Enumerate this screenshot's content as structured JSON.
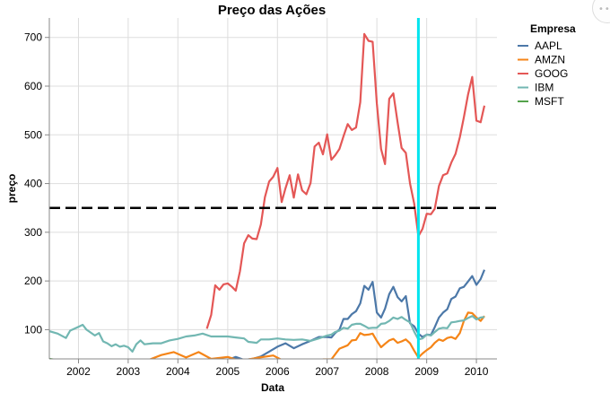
{
  "chart_data": {
    "type": "line",
    "title": "Preço das Ações",
    "xlabel": "Data",
    "ylabel": "preço",
    "ylim": [
      40,
      740
    ],
    "xlim": [
      "2001-06-01",
      "2010-06-01"
    ],
    "x_ticks": [
      "2002",
      "2003",
      "2004",
      "2005",
      "2006",
      "2007",
      "2008",
      "2009",
      "2010"
    ],
    "y_ticks": [
      100,
      200,
      300,
      400,
      500,
      600,
      700
    ],
    "grid": true,
    "legend": {
      "title": "Empresa",
      "position": "right"
    },
    "rules": [
      {
        "orientation": "horizontal",
        "y": 350,
        "color": "#000000",
        "style": "dashed"
      },
      {
        "orientation": "vertical",
        "x": "2008-11-01",
        "color": "#00e5ee",
        "style": "solid"
      }
    ],
    "series": [
      {
        "name": "AAPL",
        "color": "#4c78a8",
        "points": [
          [
            "2001-06-01",
            25
          ],
          [
            "2002-01-01",
            22
          ],
          [
            "2003-01-01",
            15
          ],
          [
            "2004-01-01",
            22
          ],
          [
            "2004-10-01",
            35
          ],
          [
            "2005-01-01",
            38
          ],
          [
            "2005-03-01",
            44
          ],
          [
            "2005-05-01",
            38
          ],
          [
            "2005-07-01",
            40
          ],
          [
            "2005-09-01",
            45
          ],
          [
            "2005-11-01",
            55
          ],
          [
            "2006-01-01",
            65
          ],
          [
            "2006-03-01",
            72
          ],
          [
            "2006-05-01",
            62
          ],
          [
            "2006-07-01",
            70
          ],
          [
            "2006-09-01",
            77
          ],
          [
            "2006-11-01",
            85
          ],
          [
            "2007-01-01",
            85
          ],
          [
            "2007-02-01",
            84
          ],
          [
            "2007-03-01",
            93
          ],
          [
            "2007-04-01",
            100
          ],
          [
            "2007-05-01",
            122
          ],
          [
            "2007-06-01",
            122
          ],
          [
            "2007-07-01",
            132
          ],
          [
            "2007-08-01",
            138
          ],
          [
            "2007-09-01",
            154
          ],
          [
            "2007-10-01",
            190
          ],
          [
            "2007-11-01",
            182
          ],
          [
            "2007-12-01",
            198
          ],
          [
            "2008-01-01",
            135
          ],
          [
            "2008-02-01",
            125
          ],
          [
            "2008-03-01",
            143
          ],
          [
            "2008-04-01",
            173
          ],
          [
            "2008-05-01",
            188
          ],
          [
            "2008-06-01",
            167
          ],
          [
            "2008-07-01",
            158
          ],
          [
            "2008-08-01",
            169
          ],
          [
            "2008-09-01",
            113
          ],
          [
            "2008-10-01",
            107
          ],
          [
            "2008-11-01",
            92
          ],
          [
            "2008-12-01",
            85
          ],
          [
            "2009-01-01",
            90
          ],
          [
            "2009-02-01",
            89
          ],
          [
            "2009-03-01",
            105
          ],
          [
            "2009-04-01",
            125
          ],
          [
            "2009-05-01",
            135
          ],
          [
            "2009-06-01",
            142
          ],
          [
            "2009-07-01",
            163
          ],
          [
            "2009-08-01",
            168
          ],
          [
            "2009-09-01",
            185
          ],
          [
            "2009-10-01",
            188
          ],
          [
            "2009-11-01",
            199
          ],
          [
            "2009-12-01",
            210
          ],
          [
            "2010-01-01",
            192
          ],
          [
            "2010-02-01",
            204
          ],
          [
            "2010-03-01",
            223
          ]
        ]
      },
      {
        "name": "AMZN",
        "color": "#f58518",
        "points": [
          [
            "2001-06-01",
            16
          ],
          [
            "2002-01-01",
            14
          ],
          [
            "2002-12-01",
            20
          ],
          [
            "2003-06-01",
            38
          ],
          [
            "2003-09-01",
            48
          ],
          [
            "2003-12-01",
            54
          ],
          [
            "2004-03-01",
            43
          ],
          [
            "2004-06-01",
            54
          ],
          [
            "2004-09-01",
            40
          ],
          [
            "2005-01-01",
            44
          ],
          [
            "2005-04-01",
            36
          ],
          [
            "2005-08-01",
            42
          ],
          [
            "2005-12-01",
            47
          ],
          [
            "2006-02-01",
            38
          ],
          [
            "2006-06-01",
            36
          ],
          [
            "2006-09-01",
            32
          ],
          [
            "2006-12-01",
            39
          ],
          [
            "2007-02-01",
            39
          ],
          [
            "2007-04-01",
            61
          ],
          [
            "2007-06-01",
            68
          ],
          [
            "2007-07-01",
            78
          ],
          [
            "2007-08-01",
            79
          ],
          [
            "2007-09-01",
            93
          ],
          [
            "2007-10-01",
            89
          ],
          [
            "2007-11-01",
            90
          ],
          [
            "2007-12-01",
            92
          ],
          [
            "2008-01-01",
            77
          ],
          [
            "2008-02-01",
            64
          ],
          [
            "2008-03-01",
            71
          ],
          [
            "2008-04-01",
            78
          ],
          [
            "2008-05-01",
            81
          ],
          [
            "2008-06-01",
            73
          ],
          [
            "2008-07-01",
            76
          ],
          [
            "2008-08-01",
            80
          ],
          [
            "2008-09-01",
            72
          ],
          [
            "2008-10-01",
            57
          ],
          [
            "2008-11-01",
            43
          ],
          [
            "2008-12-01",
            51
          ],
          [
            "2009-01-01",
            58
          ],
          [
            "2009-02-01",
            64
          ],
          [
            "2009-03-01",
            73
          ],
          [
            "2009-04-01",
            80
          ],
          [
            "2009-05-01",
            77
          ],
          [
            "2009-06-01",
            83
          ],
          [
            "2009-07-01",
            85
          ],
          [
            "2009-08-01",
            81
          ],
          [
            "2009-09-01",
            93
          ],
          [
            "2009-10-01",
            118
          ],
          [
            "2009-11-01",
            135
          ],
          [
            "2009-12-01",
            134
          ],
          [
            "2010-01-01",
            125
          ],
          [
            "2010-02-01",
            118
          ],
          [
            "2010-03-01",
            128
          ]
        ]
      },
      {
        "name": "GOOG",
        "color": "#e45756",
        "points": [
          [
            "2004-08-01",
            102
          ],
          [
            "2004-09-01",
            130
          ],
          [
            "2004-10-01",
            191
          ],
          [
            "2004-11-01",
            182
          ],
          [
            "2004-12-01",
            193
          ],
          [
            "2005-01-01",
            195
          ],
          [
            "2005-02-01",
            188
          ],
          [
            "2005-03-01",
            180
          ],
          [
            "2005-04-01",
            220
          ],
          [
            "2005-05-01",
            277
          ],
          [
            "2005-06-01",
            294
          ],
          [
            "2005-07-01",
            287
          ],
          [
            "2005-08-01",
            286
          ],
          [
            "2005-09-01",
            316
          ],
          [
            "2005-10-01",
            372
          ],
          [
            "2005-11-01",
            404
          ],
          [
            "2005-12-01",
            414
          ],
          [
            "2006-01-01",
            432
          ],
          [
            "2006-02-01",
            362
          ],
          [
            "2006-03-01",
            390
          ],
          [
            "2006-04-01",
            417
          ],
          [
            "2006-05-01",
            371
          ],
          [
            "2006-06-01",
            419
          ],
          [
            "2006-07-01",
            386
          ],
          [
            "2006-08-01",
            378
          ],
          [
            "2006-09-01",
            401
          ],
          [
            "2006-10-01",
            476
          ],
          [
            "2006-11-01",
            484
          ],
          [
            "2006-12-01",
            460
          ],
          [
            "2007-01-01",
            501
          ],
          [
            "2007-02-01",
            449
          ],
          [
            "2007-03-01",
            458
          ],
          [
            "2007-04-01",
            471
          ],
          [
            "2007-05-01",
            497
          ],
          [
            "2007-06-01",
            522
          ],
          [
            "2007-07-01",
            510
          ],
          [
            "2007-08-01",
            515
          ],
          [
            "2007-09-01",
            567
          ],
          [
            "2007-10-01",
            707
          ],
          [
            "2007-11-01",
            693
          ],
          [
            "2007-12-01",
            691
          ],
          [
            "2008-01-01",
            564
          ],
          [
            "2008-02-01",
            471
          ],
          [
            "2008-03-01",
            440
          ],
          [
            "2008-04-01",
            574
          ],
          [
            "2008-05-01",
            585
          ],
          [
            "2008-06-01",
            526
          ],
          [
            "2008-07-01",
            473
          ],
          [
            "2008-08-01",
            463
          ],
          [
            "2008-09-01",
            400
          ],
          [
            "2008-10-01",
            359
          ],
          [
            "2008-11-01",
            292
          ],
          [
            "2008-12-01",
            307
          ],
          [
            "2009-01-01",
            338
          ],
          [
            "2009-02-01",
            337
          ],
          [
            "2009-03-01",
            348
          ],
          [
            "2009-04-01",
            395
          ],
          [
            "2009-05-01",
            417
          ],
          [
            "2009-06-01",
            421
          ],
          [
            "2009-07-01",
            443
          ],
          [
            "2009-08-01",
            461
          ],
          [
            "2009-09-01",
            495
          ],
          [
            "2009-10-01",
            536
          ],
          [
            "2009-11-01",
            583
          ],
          [
            "2009-12-01",
            619
          ],
          [
            "2010-01-01",
            529
          ],
          [
            "2010-02-01",
            526
          ],
          [
            "2010-03-01",
            560
          ]
        ]
      },
      {
        "name": "IBM",
        "color": "#72b7b2",
        "points": [
          [
            "2001-06-01",
            97
          ],
          [
            "2001-08-01",
            92
          ],
          [
            "2001-10-01",
            83
          ],
          [
            "2001-11-01",
            98
          ],
          [
            "2002-01-01",
            106
          ],
          [
            "2002-02-01",
            110
          ],
          [
            "2002-03-01",
            100
          ],
          [
            "2002-05-01",
            88
          ],
          [
            "2002-06-01",
            93
          ],
          [
            "2002-07-01",
            76
          ],
          [
            "2002-08-01",
            72
          ],
          [
            "2002-09-01",
            66
          ],
          [
            "2002-10-01",
            70
          ],
          [
            "2002-11-01",
            65
          ],
          [
            "2002-12-01",
            67
          ],
          [
            "2003-01-01",
            64
          ],
          [
            "2003-02-01",
            55
          ],
          [
            "2003-03-01",
            70
          ],
          [
            "2003-04-01",
            78
          ],
          [
            "2003-05-01",
            70
          ],
          [
            "2003-07-01",
            72
          ],
          [
            "2003-09-01",
            72
          ],
          [
            "2003-11-01",
            78
          ],
          [
            "2004-01-01",
            81
          ],
          [
            "2004-03-01",
            86
          ],
          [
            "2004-05-01",
            88
          ],
          [
            "2004-07-01",
            92
          ],
          [
            "2004-09-01",
            86
          ],
          [
            "2004-11-01",
            86
          ],
          [
            "2005-01-01",
            86
          ],
          [
            "2005-03-01",
            84
          ],
          [
            "2005-05-01",
            82
          ],
          [
            "2005-06-01",
            75
          ],
          [
            "2005-07-01",
            74
          ],
          [
            "2005-08-01",
            73
          ],
          [
            "2005-09-01",
            80
          ],
          [
            "2005-11-01",
            80
          ],
          [
            "2006-01-01",
            82
          ],
          [
            "2006-03-01",
            80
          ],
          [
            "2006-05-01",
            79
          ],
          [
            "2006-07-01",
            80
          ],
          [
            "2006-09-01",
            77
          ],
          [
            "2006-11-01",
            82
          ],
          [
            "2007-01-01",
            88
          ],
          [
            "2007-02-01",
            90
          ],
          [
            "2007-03-01",
            95
          ],
          [
            "2007-04-01",
            98
          ],
          [
            "2007-05-01",
            104
          ],
          [
            "2007-06-01",
            102
          ],
          [
            "2007-07-01",
            110
          ],
          [
            "2007-08-01",
            112
          ],
          [
            "2007-09-01",
            112
          ],
          [
            "2007-10-01",
            108
          ],
          [
            "2007-11-01",
            103
          ],
          [
            "2007-12-01",
            104
          ],
          [
            "2008-01-01",
            104
          ],
          [
            "2008-02-01",
            112
          ],
          [
            "2008-03-01",
            113
          ],
          [
            "2008-04-01",
            118
          ],
          [
            "2008-05-01",
            125
          ],
          [
            "2008-06-01",
            122
          ],
          [
            "2008-07-01",
            126
          ],
          [
            "2008-08-01",
            120
          ],
          [
            "2008-09-01",
            115
          ],
          [
            "2008-10-01",
            96
          ],
          [
            "2008-11-01",
            80
          ],
          [
            "2008-12-01",
            82
          ],
          [
            "2009-01-01",
            90
          ],
          [
            "2009-02-01",
            88
          ],
          [
            "2009-03-01",
            95
          ],
          [
            "2009-04-01",
            102
          ],
          [
            "2009-05-01",
            104
          ],
          [
            "2009-06-01",
            103
          ],
          [
            "2009-07-01",
            115
          ],
          [
            "2009-08-01",
            116
          ],
          [
            "2009-09-01",
            118
          ],
          [
            "2009-10-01",
            119
          ],
          [
            "2009-11-01",
            124
          ],
          [
            "2009-12-01",
            128
          ],
          [
            "2010-01-01",
            121
          ],
          [
            "2010-02-01",
            125
          ],
          [
            "2010-03-01",
            126
          ]
        ]
      },
      {
        "name": "MSFT",
        "color": "#54a24b",
        "points": [
          [
            "2001-06-01",
            40
          ],
          [
            "2002-06-01",
            26
          ],
          [
            "2003-06-01",
            22
          ],
          [
            "2004-06-01",
            24
          ],
          [
            "2005-06-01",
            23
          ],
          [
            "2006-06-01",
            24
          ],
          [
            "2007-06-01",
            28
          ],
          [
            "2007-10-01",
            35
          ],
          [
            "2008-06-01",
            26
          ],
          [
            "2008-11-01",
            19
          ],
          [
            "2009-06-01",
            22
          ],
          [
            "2010-03-01",
            28
          ]
        ]
      }
    ]
  }
}
